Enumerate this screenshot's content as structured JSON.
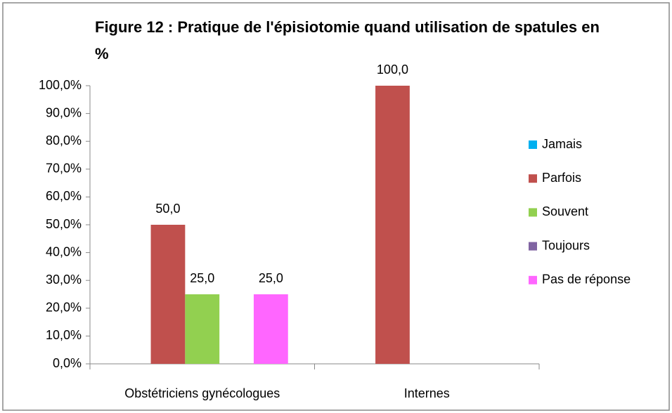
{
  "chart_data": {
    "type": "bar",
    "title": "Figure 12 : Pratique de l'épisiotomie quand utilisation de spatules en %",
    "categories": [
      "Obstétriciens gynécologues",
      "Internes"
    ],
    "series": [
      {
        "name": "Jamais",
        "color": "#00b0f0",
        "values": [
          0,
          0
        ],
        "value_labels": [
          null,
          null
        ]
      },
      {
        "name": "Parfois",
        "color": "#c0504d",
        "values": [
          50,
          100
        ],
        "value_labels": [
          "50,0",
          "100,0"
        ]
      },
      {
        "name": "Souvent",
        "color": "#92d050",
        "values": [
          25,
          0
        ],
        "value_labels": [
          "25,0",
          null
        ]
      },
      {
        "name": "Toujours",
        "color": "#8064a2",
        "values": [
          0,
          0
        ],
        "value_labels": [
          null,
          null
        ]
      },
      {
        "name": "Pas de réponse",
        "color": "#ff66ff",
        "values": [
          25,
          0
        ],
        "value_labels": [
          "25,0",
          null
        ]
      }
    ],
    "ylim": [
      0,
      100
    ],
    "yticks": [
      {
        "value": 0,
        "label": "0,0%"
      },
      {
        "value": 10,
        "label": "10,0%"
      },
      {
        "value": 20,
        "label": "20,0%"
      },
      {
        "value": 30,
        "label": "30,0%"
      },
      {
        "value": 40,
        "label": "40,0%"
      },
      {
        "value": 50,
        "label": "50,0%"
      },
      {
        "value": 60,
        "label": "60,0%"
      },
      {
        "value": 70,
        "label": "70,0%"
      },
      {
        "value": 80,
        "label": "80,0%"
      },
      {
        "value": 90,
        "label": "90,0%"
      },
      {
        "value": 100,
        "label": "100,0%"
      }
    ],
    "grid": false,
    "legend": "right"
  }
}
